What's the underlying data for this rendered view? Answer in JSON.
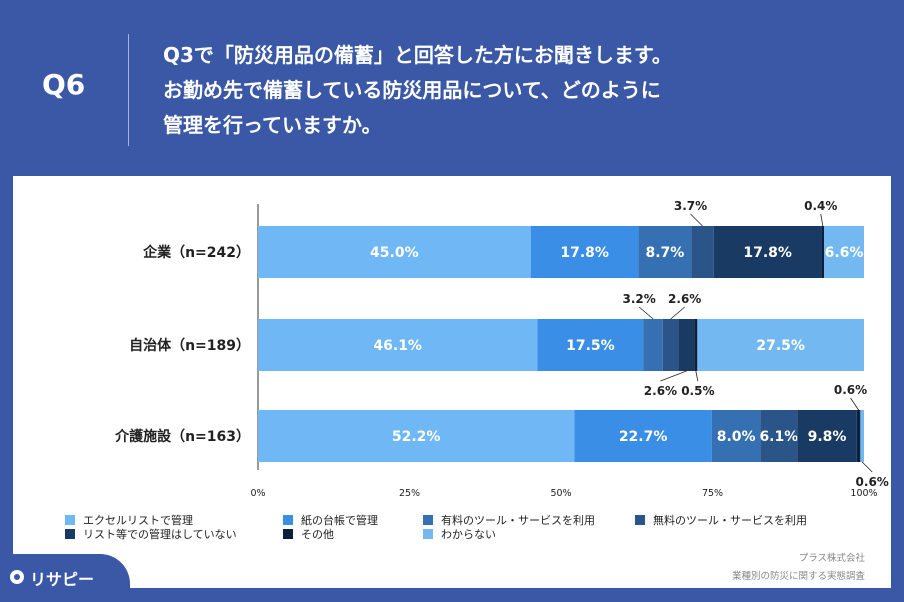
{
  "header": {
    "q_label": "Q6",
    "question_lines": [
      "Q3で「防災用品の備蓄」と回答した方にお聞きします。",
      "お勤め先で備蓄している防災用品について、どのように",
      "管理を行っていますか。"
    ]
  },
  "chart_data": {
    "type": "bar",
    "orientation": "horizontal",
    "stacked": true,
    "categories": [
      "企業（n=242）",
      "自治体（n=189）",
      "介護施設（n=163）"
    ],
    "series": [
      {
        "name": "エクセルリストで管理",
        "color": "#6fb8f5",
        "values": [
          45.0,
          46.1,
          52.2
        ],
        "labels": [
          "45.0%",
          "46.1%",
          "52.2%"
        ]
      },
      {
        "name": "紙の台帳で管理",
        "color": "#3a8ee6",
        "values": [
          17.8,
          17.5,
          22.7
        ],
        "labels": [
          "17.8%",
          "17.5%",
          "22.7%"
        ]
      },
      {
        "name": "有料のツール・サービスを利用",
        "color": "#3570b3",
        "values": [
          8.7,
          3.2,
          8.0
        ],
        "labels": [
          "8.7%",
          "3.2%",
          "8.0%"
        ]
      },
      {
        "name": "無料のツール・サービスを利用",
        "color": "#2b5588",
        "values": [
          3.7,
          2.6,
          6.1
        ],
        "labels": [
          "3.7%",
          "2.6%",
          "6.1%"
        ]
      },
      {
        "name": "リスト等での管理はしていない",
        "color": "#193a63",
        "values": [
          17.8,
          2.6,
          9.8
        ],
        "labels": [
          "17.8%",
          "2.6%",
          "9.8%"
        ]
      },
      {
        "name": "その他",
        "color": "#0c1f3f",
        "values": [
          0.4,
          0.5,
          0.6
        ],
        "labels": [
          "0.4%",
          "0.5%",
          "0.6%"
        ]
      },
      {
        "name": "わからない",
        "color": "#74b8f2",
        "values": [
          6.6,
          27.5,
          0.6
        ],
        "labels": [
          "6.6%",
          "27.5%",
          "0.6%"
        ]
      }
    ],
    "xlim": [
      0,
      100
    ],
    "xticks": [
      "0%",
      "25%",
      "50%",
      "75%",
      "100%"
    ],
    "legend_position": "bottom"
  },
  "source": {
    "line1": "プラス株式会社",
    "line2": "業種別の防災に関する実態調査"
  },
  "logo": {
    "text": "リサピー"
  }
}
